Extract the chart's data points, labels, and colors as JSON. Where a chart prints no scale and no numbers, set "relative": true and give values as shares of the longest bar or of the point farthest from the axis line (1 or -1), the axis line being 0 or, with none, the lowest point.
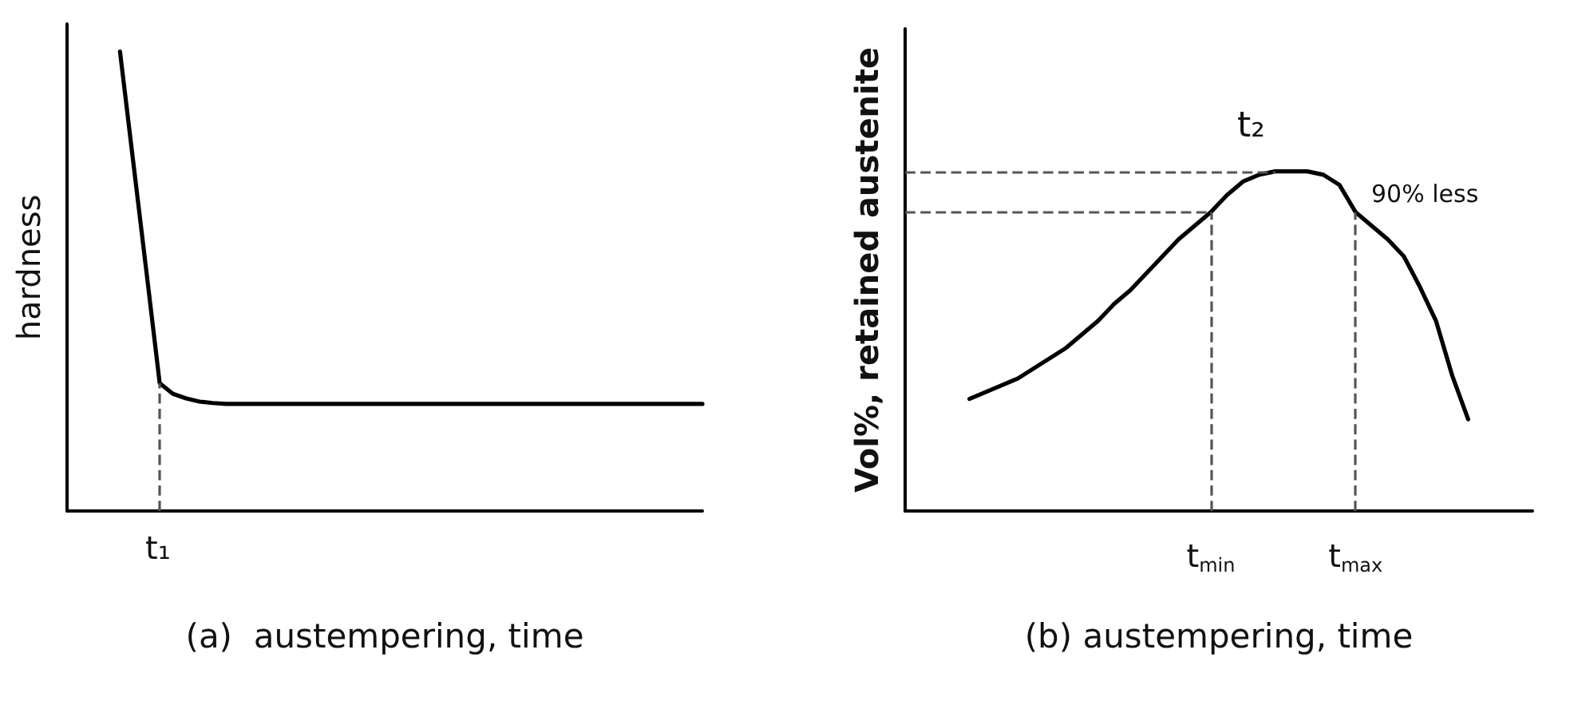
{
  "chart_data": [
    {
      "type": "line",
      "relative": true,
      "xlabel": "(a)  austempering, time",
      "ylabel": "hardness",
      "marker": "none",
      "line_style": "solid",
      "categories": [
        null,
        null,
        null,
        null,
        null,
        null,
        null,
        null,
        null,
        null,
        null,
        null,
        null,
        null,
        null,
        null,
        null,
        null,
        null,
        null,
        null,
        null,
        null,
        null,
        null,
        null,
        null,
        null,
        null,
        null,
        null,
        null,
        null,
        null,
        null,
        null,
        null,
        null,
        null,
        null,
        null,
        null,
        null,
        null,
        null,
        null,
        null,
        null,
        null
      ],
      "series": [
        {
          "color": "#000000",
          "values": [
            null,
            null,
            null,
            null,
            1.0,
            0.76,
            0.52,
            0.278,
            0.255,
            0.245,
            0.238,
            0.235,
            0.233,
            0.233,
            0.233,
            0.233,
            0.233,
            0.233,
            0.233,
            0.233,
            0.233,
            0.233,
            0.233,
            0.233,
            0.233,
            0.233,
            0.233,
            0.233,
            0.233,
            0.233,
            0.233,
            0.233,
            0.233,
            0.233,
            0.233,
            0.233,
            0.233,
            0.233,
            0.233,
            0.233,
            0.233,
            0.233,
            0.233,
            0.233,
            0.233,
            0.233,
            0.233,
            0.233,
            0.233
          ]
        }
      ],
      "annotations": [
        "t₁"
      ]
    },
    {
      "type": "line",
      "relative": true,
      "xlabel": "(b) austempering, time",
      "ylabel": "Vol%, retained austenite",
      "marker": "none",
      "line_style": "solid",
      "categories": [
        null,
        null,
        null,
        null,
        null,
        null,
        null,
        null,
        null,
        null,
        null,
        null,
        null,
        null,
        null,
        null,
        null,
        null,
        null,
        "t$_{min}$",
        null,
        null,
        null,
        null,
        null,
        null,
        null,
        null,
        "t$_{max}$",
        null,
        null,
        null,
        null,
        null,
        null,
        null,
        null,
        null,
        null,
        null
      ],
      "series": [
        {
          "color": "#000000",
          "values": [
            null,
            null,
            null,
            null,
            0.33,
            0.35,
            0.37,
            0.39,
            0.42,
            0.45,
            0.48,
            0.52,
            0.56,
            0.61,
            0.65,
            0.7,
            0.75,
            0.8,
            0.84,
            0.88,
            0.93,
            0.97,
            0.99,
            1.0,
            1.0,
            1.0,
            0.99,
            0.96,
            0.88,
            0.84,
            0.8,
            0.75,
            0.66,
            0.56,
            0.4,
            0.27,
            null,
            null,
            null,
            null
          ]
        }
      ],
      "ref_lines": [
        {
          "axis": "y",
          "value": 1.0,
          "color": "#555555",
          "line_style": "dashed"
        },
        {
          "axis": "y",
          "value": 0.88,
          "color": "#555555",
          "line_style": "dashed"
        },
        {
          "axis": "x",
          "value": "t$_{min}$",
          "color": "#555555",
          "line_style": "dashed"
        },
        {
          "axis": "x",
          "value": "t$_{max}$",
          "color": "#555555",
          "line_style": "dashed"
        }
      ],
      "annotations": [
        "t₂",
        "90% less"
      ]
    }
  ]
}
